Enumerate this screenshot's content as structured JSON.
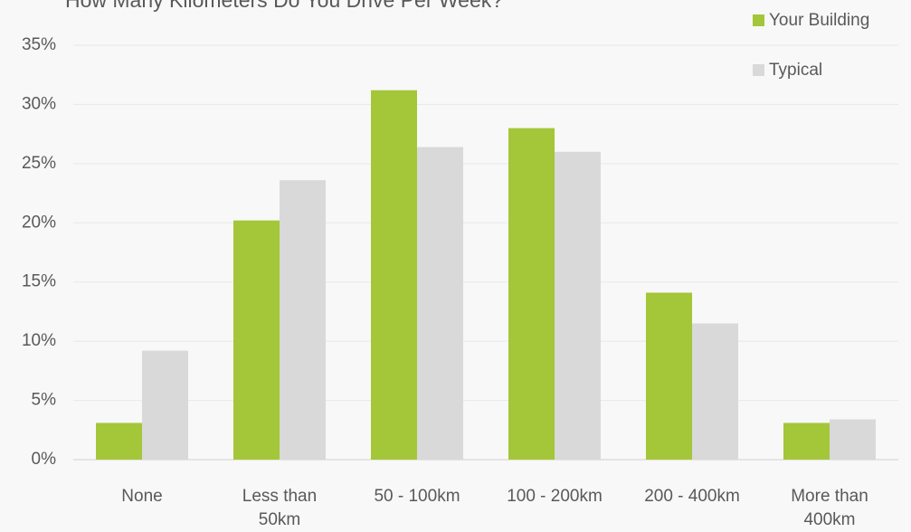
{
  "chart_data": {
    "type": "bar",
    "title": "How Many Kilometers Do You Drive Per Week?",
    "categories": [
      "None",
      "Less than 50km",
      "50 - 100km",
      "100 - 200km",
      "200 - 400km",
      "More than 400km"
    ],
    "series": [
      {
        "name": "Your Building",
        "color": "#a4c639",
        "values": [
          3.1,
          20.2,
          31.2,
          28.0,
          14.1,
          3.1
        ]
      },
      {
        "name": "Typical",
        "color": "#d9d9d9",
        "values": [
          9.2,
          23.6,
          26.4,
          26.0,
          11.5,
          3.4
        ]
      }
    ],
    "ylim": [
      0,
      35
    ],
    "yticks": [
      {
        "value": 0,
        "label": "0%"
      },
      {
        "value": 5,
        "label": "5%"
      },
      {
        "value": 10,
        "label": "10%"
      },
      {
        "value": 15,
        "label": "15%"
      },
      {
        "value": 20,
        "label": "20%"
      },
      {
        "value": 25,
        "label": "25%"
      },
      {
        "value": 30,
        "label": "30%"
      },
      {
        "value": 35,
        "label": "35%"
      }
    ],
    "grid": true,
    "legend": "top-right"
  }
}
